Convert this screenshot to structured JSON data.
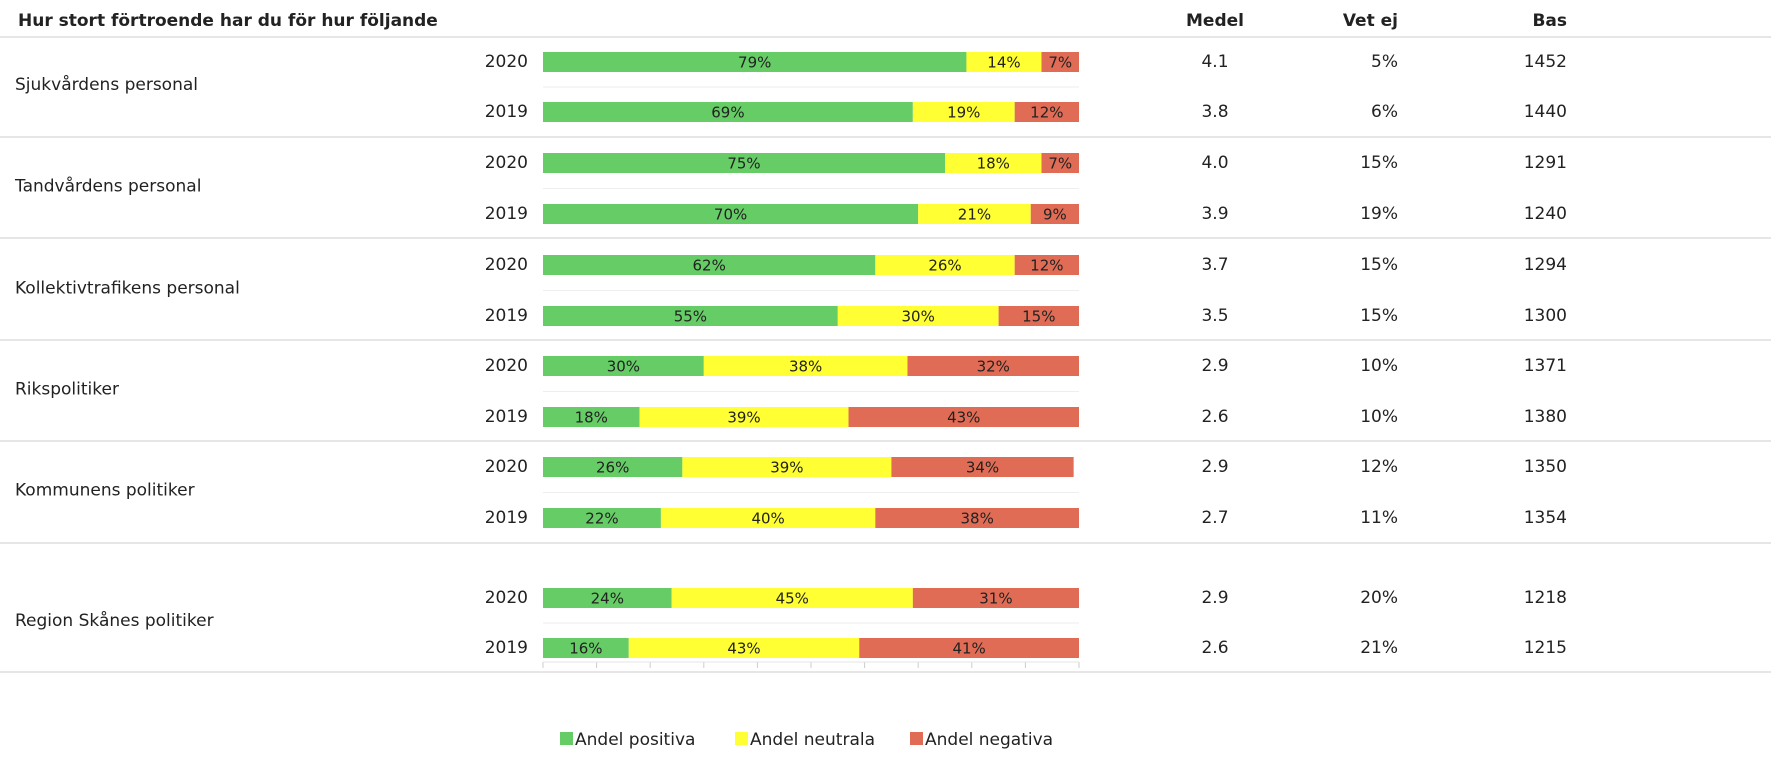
{
  "chart_data": {
    "type": "bar",
    "stacked": true,
    "orientation": "horizontal",
    "title": "Hur stort förtroende har du för hur följande",
    "groups": [
      "Sjukvårdens personal",
      "Tandvårdens personal",
      "Kollektivtrafikens personal",
      "Rikspolitiker",
      "Kommunens politiker",
      "Region Skånes politiker"
    ],
    "categories": [
      "2020",
      "2019",
      "2020",
      "2019",
      "2020",
      "2019",
      "2020",
      "2019",
      "2020",
      "2019",
      "2020",
      "2019"
    ],
    "xlim": [
      0,
      100
    ],
    "xticks": [
      0,
      10,
      20,
      30,
      40,
      50,
      60,
      70,
      80,
      90,
      100
    ],
    "legend": "bottom",
    "series": [
      {
        "name": "Andel positiva",
        "color": "#66cc66",
        "values": [
          79,
          69,
          75,
          70,
          62,
          55,
          30,
          18,
          26,
          22,
          24,
          16
        ],
        "value_labels": [
          "79%",
          "69%",
          "75%",
          "70%",
          "62%",
          "55%",
          "30%",
          "18%",
          "26%",
          "22%",
          "24%",
          "16%"
        ]
      },
      {
        "name": "Andel neutrala",
        "color": "#ffff33",
        "values": [
          14,
          19,
          18,
          21,
          26,
          30,
          38,
          39,
          39,
          40,
          45,
          43
        ],
        "value_labels": [
          "14%",
          "19%",
          "18%",
          "21%",
          "26%",
          "30%",
          "38%",
          "39%",
          "39%",
          "40%",
          "45%",
          "43%"
        ]
      },
      {
        "name": "Andel negativa",
        "color": "#e06c55",
        "values": [
          7,
          12,
          7,
          9,
          12,
          15,
          32,
          43,
          34,
          38,
          31,
          41
        ],
        "value_labels": [
          "7%",
          "12%",
          "7%",
          "9%",
          "12%",
          "15%",
          "32%",
          "43%",
          "34%",
          "38%",
          "31%",
          "41%"
        ]
      }
    ],
    "columns": [
      {
        "name": "Medel",
        "values": [
          4.1,
          3.8,
          4.0,
          3.9,
          3.7,
          3.5,
          2.9,
          2.6,
          2.9,
          2.7,
          2.9,
          2.6
        ],
        "value_labels": [
          "4.1",
          "3.8",
          "4.0",
          "3.9",
          "3.7",
          "3.5",
          "2.9",
          "2.6",
          "2.9",
          "2.7",
          "2.9",
          "2.6"
        ]
      },
      {
        "name": "Vet ej",
        "values": [
          5,
          6,
          15,
          19,
          15,
          15,
          10,
          10,
          12,
          11,
          20,
          21
        ],
        "value_labels": [
          "5%",
          "6%",
          "15%",
          "19%",
          "15%",
          "15%",
          "10%",
          "10%",
          "12%",
          "11%",
          "20%",
          "21%"
        ]
      },
      {
        "name": "Bas",
        "values": [
          1452,
          1440,
          1291,
          1240,
          1294,
          1300,
          1371,
          1380,
          1350,
          1354,
          1218,
          1215
        ]
      }
    ]
  }
}
